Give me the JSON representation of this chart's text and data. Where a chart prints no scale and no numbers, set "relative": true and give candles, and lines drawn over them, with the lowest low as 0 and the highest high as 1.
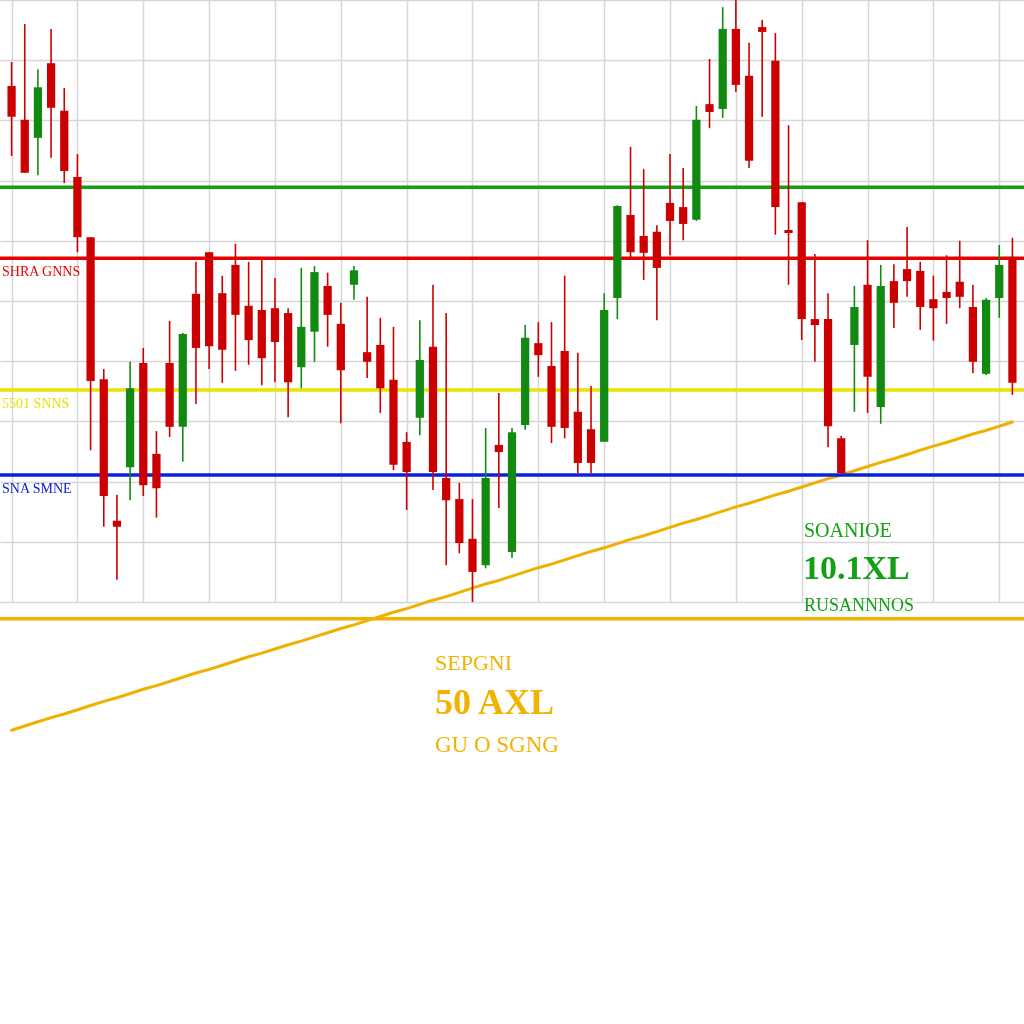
{
  "chart_data": {
    "type": "candlestick",
    "relative": true,
    "grid": true,
    "categories": [
      null,
      null,
      null,
      null,
      null,
      null,
      null,
      null,
      null,
      null,
      null,
      null,
      null,
      null,
      null,
      null,
      null,
      null,
      null,
      null,
      null,
      null,
      null,
      null,
      null,
      null,
      null,
      null,
      null,
      null,
      null,
      null,
      null,
      null,
      null,
      null,
      null,
      null,
      null,
      null,
      null,
      null,
      null,
      null,
      null,
      null,
      null,
      null,
      null,
      null,
      null,
      null,
      null,
      null,
      null,
      null,
      null,
      null,
      null,
      null,
      null,
      null,
      null,
      null,
      null,
      null,
      null,
      null,
      null,
      null,
      null,
      null,
      null,
      null,
      null,
      null,
      null
    ],
    "ohlc": [
      [
        0.857,
        0.897,
        0.741,
        0.806
      ],
      [
        0.801,
        0.96,
        0.713,
        0.713
      ],
      [
        0.771,
        0.885,
        0.709,
        0.855
      ],
      [
        0.895,
        0.952,
        0.738,
        0.821
      ],
      [
        0.816,
        0.854,
        0.696,
        0.716
      ],
      [
        0.706,
        0.744,
        0.581,
        0.606
      ],
      [
        0.606,
        0.606,
        0.252,
        0.367
      ],
      [
        0.37,
        0.387,
        0.125,
        0.176
      ],
      [
        0.135,
        0.178,
        0.037,
        0.125
      ],
      [
        0.224,
        0.399,
        0.169,
        0.355
      ],
      [
        0.397,
        0.422,
        0.176,
        0.194
      ],
      [
        0.246,
        0.284,
        0.14,
        0.189
      ],
      [
        0.397,
        0.467,
        0.274,
        0.291
      ],
      [
        0.291,
        0.447,
        0.233,
        0.445
      ],
      [
        0.512,
        0.565,
        0.329,
        0.422
      ],
      [
        0.581,
        0.581,
        0.387,
        0.425
      ],
      [
        0.513,
        0.542,
        0.364,
        0.419
      ],
      [
        0.56,
        0.595,
        0.384,
        0.477
      ],
      [
        0.492,
        0.565,
        0.394,
        0.435
      ],
      [
        0.485,
        0.568,
        0.36,
        0.405
      ],
      [
        0.488,
        0.538,
        0.365,
        0.432
      ],
      [
        0.48,
        0.488,
        0.307,
        0.365
      ],
      [
        0.39,
        0.555,
        0.355,
        0.457
      ],
      [
        0.449,
        0.558,
        0.399,
        0.548
      ],
      [
        0.525,
        0.547,
        0.424,
        0.477
      ],
      [
        0.462,
        0.497,
        0.297,
        0.385
      ],
      [
        0.527,
        0.558,
        0.502,
        0.551
      ],
      [
        0.415,
        0.507,
        0.372,
        0.399
      ],
      [
        0.427,
        0.472,
        0.314,
        0.355
      ],
      [
        0.369,
        0.457,
        0.219,
        0.228
      ],
      [
        0.266,
        0.282,
        0.153,
        0.216
      ],
      [
        0.306,
        0.468,
        0.277,
        0.402
      ],
      [
        0.424,
        0.527,
        0.186,
        0.216
      ],
      [
        0.206,
        0.48,
        0.061,
        0.169
      ],
      [
        0.171,
        0.198,
        0.081,
        0.098
      ],
      [
        0.105,
        0.171,
        0,
        0.05
      ],
      [
        0.061,
        0.289,
        0.056,
        0.206
      ],
      [
        0.261,
        0.347,
        0.156,
        0.249
      ],
      [
        0.083,
        0.289,
        0.073,
        0.282
      ],
      [
        0.294,
        0.46,
        0.286,
        0.439
      ],
      [
        0.43,
        0.465,
        0.374,
        0.41
      ],
      [
        0.392,
        0.465,
        0.264,
        0.291
      ],
      [
        0.417,
        0.542,
        0.272,
        0.289
      ],
      [
        0.316,
        0.414,
        0.214,
        0.231
      ],
      [
        0.287,
        0.359,
        0.214,
        0.231
      ],
      [
        0.266,
        0.513,
        0.266,
        0.485
      ],
      [
        0.505,
        0.659,
        0.47,
        0.658
      ],
      [
        0.643,
        0.756,
        0.573,
        0.581
      ],
      [
        0.608,
        0.719,
        0.535,
        0.58
      ],
      [
        0.615,
        0.626,
        0.468,
        0.555
      ],
      [
        0.663,
        0.744,
        0.576,
        0.633
      ],
      [
        0.656,
        0.721,
        0.601,
        0.628
      ],
      [
        0.635,
        0.824,
        0.633,
        0.801
      ],
      [
        0.827,
        0.902,
        0.787,
        0.814
      ],
      [
        0.819,
        0.988,
        0.804,
        0.952
      ],
      [
        0.952,
        1,
        0.847,
        0.859
      ],
      [
        0.874,
        0.929,
        0.721,
        0.733
      ],
      [
        0.955,
        0.967,
        0.806,
        0.947
      ],
      [
        0.899,
        0.945,
        0.61,
        0.656
      ],
      [
        0.618,
        0.792,
        0.527,
        0.613
      ],
      [
        0.664,
        0.664,
        0.435,
        0.47
      ],
      [
        0.47,
        0.578,
        0.399,
        0.46
      ],
      [
        0.47,
        0.513,
        0.257,
        0.292
      ],
      [
        0.272,
        0.276,
        0.214,
        0.214
      ],
      [
        0.427,
        0.525,
        0.316,
        0.49
      ],
      [
        0.527,
        0.601,
        0.314,
        0.374
      ],
      [
        0.324,
        0.56,
        0.296,
        0.525
      ],
      [
        0.533,
        0.561,
        0.455,
        0.497
      ],
      [
        0.553,
        0.623,
        0.507,
        0.533
      ],
      [
        0.55,
        0.565,
        0.452,
        0.49
      ],
      [
        0.503,
        0.542,
        0.434,
        0.488
      ],
      [
        0.515,
        0.576,
        0.462,
        0.505
      ],
      [
        0.532,
        0.6,
        0.488,
        0.507
      ],
      [
        0.49,
        0.527,
        0.38,
        0.399
      ],
      [
        0.379,
        0.505,
        0.377,
        0.502
      ],
      [
        0.505,
        0.593,
        0.472,
        0.56
      ],
      [
        0.573,
        0.605,
        0.344,
        0.364
      ]
    ],
    "colors": [
      "#cc0000",
      "#cc0000",
      "#128a12",
      "#cc0000",
      "#cc0000",
      "#cc0000",
      "#cc0000",
      "#cc0000",
      "#cc0000",
      "#128a12",
      "#cc0000",
      "#cc0000",
      "#cc0000",
      "#128a12",
      "#cc0000",
      "#cc0000",
      "#cc0000",
      "#cc0000",
      "#cc0000",
      "#cc0000",
      "#cc0000",
      "#cc0000",
      "#128a12",
      "#128a12",
      "#cc0000",
      "#cc0000",
      "#128a12",
      "#cc0000",
      "#cc0000",
      "#cc0000",
      "#cc0000",
      "#128a12",
      "#cc0000",
      "#cc0000",
      "#cc0000",
      "#cc0000",
      "#128a12",
      "#cc0000",
      "#128a12",
      "#128a12",
      "#cc0000",
      "#cc0000",
      "#cc0000",
      "#cc0000",
      "#cc0000",
      "#128a12",
      "#128a12",
      "#cc0000",
      "#cc0000",
      "#cc0000",
      "#cc0000",
      "#cc0000",
      "#128a12",
      "#cc0000",
      "#128a12",
      "#cc0000",
      "#cc0000",
      "#cc0000",
      "#cc0000",
      "#cc0000",
      "#cc0000",
      "#cc0000",
      "#cc0000",
      "#cc0000",
      "#128a12",
      "#cc0000",
      "#128a12",
      "#cc0000",
      "#cc0000",
      "#cc0000",
      "#cc0000",
      "#cc0000",
      "#cc0000",
      "#cc0000",
      "#128a12",
      "#128a12",
      "#cc0000"
    ],
    "series": [
      {
        "type": "line",
        "color": "#f0b000",
        "values": [
          -0.213,
          -0.206,
          -0.199,
          -0.192,
          -0.186,
          -0.179,
          -0.172,
          -0.165,
          -0.159,
          -0.152,
          -0.145,
          -0.139,
          -0.132,
          -0.125,
          -0.118,
          -0.112,
          -0.105,
          -0.098,
          -0.091,
          -0.085,
          -0.078,
          -0.071,
          -0.065,
          -0.058,
          -0.051,
          -0.044,
          -0.038,
          -0.031,
          -0.024,
          -0.017,
          -0.011,
          -0.004,
          0.003,
          0.009,
          0.016,
          0.023,
          0.03,
          0.036,
          0.043,
          0.05,
          0.057,
          0.063,
          0.07,
          0.077,
          0.084,
          0.09,
          0.097,
          0.104,
          0.11,
          0.117,
          0.124,
          0.131,
          0.137,
          0.144,
          0.151,
          0.158,
          0.164,
          0.171,
          0.178,
          0.184,
          0.191,
          0.198,
          0.205,
          0.211,
          0.218,
          0.225,
          0.232,
          0.238,
          0.245,
          0.252,
          0.259,
          0.265,
          0.272,
          0.279,
          0.285,
          0.292,
          0.299
        ]
      }
    ],
    "ref_lines": [
      {
        "axis": "y",
        "value": 0.689,
        "color": "#14a014"
      },
      {
        "axis": "y",
        "value": 0.571,
        "label": "SHRA GNNS",
        "color": "#e60000"
      },
      {
        "axis": "y",
        "value": 0.352,
        "label": "5501 SNNS",
        "color": "#e8e400"
      },
      {
        "axis": "y",
        "value": 0.211,
        "label": "SNA SMNE",
        "color": "#0a22dd"
      },
      {
        "axis": "y",
        "value": -0.028,
        "color": "#f2b200"
      }
    ],
    "annotations": [
      "SOANIOE",
      "10.1XL",
      "RUSANNNOS",
      "SEPGNI",
      "50 AXL",
      "GU O SGNG"
    ]
  }
}
